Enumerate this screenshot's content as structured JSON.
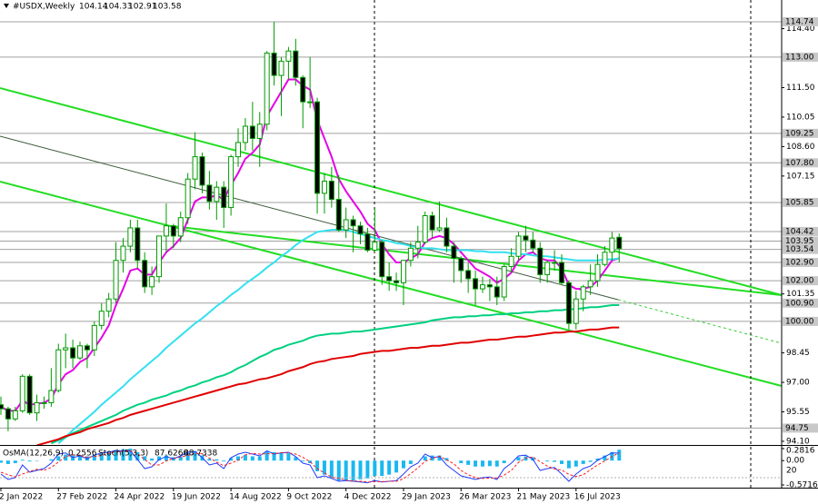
{
  "chart_data": {
    "type": "candlestick",
    "title": "#USDX,Weekly",
    "categories": [
      "2 Jan 2022",
      null,
      null,
      null,
      null,
      null,
      null,
      null,
      "27 Feb 2022",
      null,
      null,
      null,
      null,
      null,
      null,
      null,
      "24 Apr 2022",
      null,
      null,
      null,
      null,
      null,
      null,
      null,
      "19 Jun 2022",
      null,
      null,
      null,
      null,
      null,
      null,
      null,
      "14 Aug 2022",
      null,
      null,
      null,
      null,
      null,
      null,
      null,
      "9 Oct 2022",
      null,
      null,
      null,
      null,
      null,
      null,
      null,
      "4 Dec 2022",
      null,
      null,
      null,
      null,
      null,
      null,
      null,
      "29 Jan 2023",
      null,
      null,
      null,
      null,
      null,
      null,
      null,
      "26 Mar 2023",
      null,
      null,
      null,
      null,
      null,
      null,
      null,
      "21 May 2023",
      null,
      null,
      null,
      null,
      null,
      null,
      null,
      "16 Jul 2023",
      null,
      null,
      null,
      null,
      null,
      null
    ],
    "open": [
      95.9,
      95.7,
      95.2,
      95.6,
      97.3,
      95.5,
      96.0,
      96.0,
      96.6,
      98.6,
      98.7,
      98.2,
      98.8,
      98.6,
      99.8,
      100.5,
      101.1,
      103.0,
      103.7,
      104.6,
      103.0,
      101.7,
      102.2,
      104.2,
      104.7,
      104.2,
      105.1,
      107.0,
      108.1,
      106.7,
      105.9,
      106.6,
      105.6,
      108.1,
      108.8,
      109.6,
      109.0,
      109.7,
      113.2,
      112.1,
      112.8,
      113.3,
      112.0,
      110.8,
      110.8,
      106.3,
      106.9,
      106.0,
      104.5,
      105.0,
      104.7,
      104.3,
      103.5,
      103.9,
      102.2,
      102.0,
      101.9,
      103.0,
      103.6,
      103.9,
      105.2,
      104.5,
      104.6,
      103.7,
      103.1,
      102.5,
      102.1,
      101.6,
      101.8,
      101.7,
      101.2,
      102.7,
      103.2,
      104.2,
      104.0,
      103.6,
      102.3,
      102.9,
      102.9,
      101.9,
      99.9,
      101.1,
      101.7,
      102.0,
      102.8,
      103.4,
      104.14
    ],
    "high": [
      96.3,
      95.8,
      95.8,
      97.4,
      97.4,
      96.4,
      96.3,
      97.7,
      98.9,
      99.4,
      99.1,
      99.0,
      98.9,
      100.0,
      100.9,
      101.4,
      103.9,
      104.1,
      105.0,
      105.0,
      103.4,
      102.7,
      104.2,
      105.8,
      104.8,
      105.4,
      107.3,
      109.3,
      108.3,
      107.4,
      106.9,
      106.9,
      108.2,
      109.5,
      110.0,
      110.8,
      110.3,
      113.3,
      114.74,
      113.0,
      113.5,
      113.9,
      112.1,
      113.0,
      111.0,
      107.3,
      107.6,
      107.2,
      105.6,
      105.2,
      104.9,
      104.6,
      105.6,
      104.0,
      102.9,
      102.4,
      102.9,
      103.9,
      104.7,
      105.4,
      105.4,
      105.9,
      105.1,
      103.9,
      103.2,
      102.9,
      102.5,
      102.2,
      102.1,
      102.2,
      102.8,
      103.6,
      104.4,
      104.7,
      104.4,
      103.9,
      103.0,
      103.5,
      103.3,
      102.0,
      101.5,
      101.8,
      102.8,
      103.3,
      103.7,
      104.4,
      104.33
    ],
    "low": [
      95.4,
      94.6,
      95.1,
      95.5,
      95.4,
      95.1,
      95.7,
      95.8,
      96.5,
      97.7,
      97.7,
      98.1,
      97.7,
      98.3,
      99.6,
      100.2,
      100.9,
      102.4,
      103.4,
      102.6,
      101.4,
      101.3,
      101.9,
      103.4,
      103.6,
      103.9,
      104.8,
      106.5,
      106.3,
      105.5,
      105.0,
      104.6,
      105.2,
      107.6,
      108.4,
      108.4,
      107.6,
      109.4,
      111.6,
      110.1,
      111.9,
      111.6,
      109.5,
      110.5,
      105.3,
      105.3,
      105.6,
      104.4,
      104.1,
      103.4,
      103.8,
      103.4,
      103.4,
      101.8,
      101.5,
      101.5,
      100.8,
      102.7,
      103.1,
      103.8,
      104.1,
      104.4,
      103.4,
      101.9,
      101.9,
      101.4,
      100.8,
      101.4,
      101.0,
      100.8,
      101.0,
      102.4,
      103.0,
      103.4,
      103.4,
      101.9,
      101.9,
      102.5,
      101.8,
      99.6,
      99.6,
      100.5,
      101.3,
      101.7,
      102.7,
      103.0,
      102.91
    ],
    "close": [
      95.7,
      95.2,
      95.6,
      97.3,
      95.5,
      96.0,
      96.0,
      96.6,
      98.6,
      98.7,
      98.2,
      98.8,
      98.6,
      99.8,
      100.5,
      101.1,
      103.0,
      103.7,
      104.6,
      103.0,
      101.7,
      102.2,
      104.2,
      104.7,
      104.2,
      105.1,
      107.0,
      108.1,
      106.7,
      105.9,
      106.6,
      105.6,
      108.1,
      108.8,
      109.6,
      109.0,
      109.7,
      113.2,
      112.1,
      112.8,
      113.3,
      112.0,
      110.8,
      110.8,
      106.3,
      106.9,
      106.0,
      104.5,
      105.0,
      104.7,
      104.3,
      103.5,
      103.9,
      102.2,
      102.0,
      101.9,
      103.0,
      103.6,
      103.9,
      105.2,
      104.5,
      104.6,
      103.7,
      103.1,
      102.5,
      102.1,
      101.6,
      101.8,
      101.7,
      101.2,
      102.7,
      103.2,
      104.2,
      104.0,
      103.6,
      102.3,
      102.9,
      102.9,
      101.9,
      99.9,
      101.1,
      101.7,
      102.0,
      102.8,
      103.4,
      104.1,
      103.58
    ],
    "up_color": "#ffffff",
    "down_color": "#000000",
    "wick_color": "#009a00",
    "series": [
      {
        "color": "#e600e6",
        "values": [
          95.8,
          95.6,
          95.6,
          96.1,
          95.9,
          95.95,
          96.0,
          96.2,
          96.9,
          97.4,
          97.6,
          98.0,
          98.2,
          98.7,
          99.2,
          99.8,
          100.8,
          101.6,
          102.5,
          102.6,
          102.3,
          102.3,
          102.9,
          103.4,
          103.7,
          104.1,
          105.0,
          105.9,
          106.1,
          106.1,
          106.2,
          106.0,
          106.7,
          107.3,
          108.0,
          108.3,
          108.7,
          110.1,
          110.7,
          111.3,
          111.9,
          111.9,
          111.6,
          111.4,
          109.9,
          109.0,
          108.1,
          107.0,
          106.4,
          105.9,
          105.4,
          104.8,
          104.5,
          103.8,
          103.3,
          102.9,
          102.9,
          103.1,
          103.3,
          103.9,
          104.1,
          104.2,
          104.1,
          103.8,
          103.4,
          103.0,
          102.6,
          102.4,
          102.2,
          101.9,
          102.1,
          102.4,
          103.0,
          103.3,
          103.4,
          103.1,
          103.0,
          103.0,
          102.6,
          101.8,
          101.6,
          101.6,
          101.7,
          102.0,
          102.5,
          103.0,
          103.1
        ]
      },
      {
        "color": "#33e0f0",
        "values": [
          null,
          null,
          null,
          null,
          null,
          null,
          null,
          null,
          94.0,
          94.3,
          94.65,
          94.95,
          95.25,
          95.55,
          95.9,
          96.2,
          96.5,
          96.8,
          97.15,
          97.45,
          97.75,
          98.05,
          98.35,
          98.7,
          99.0,
          99.3,
          99.6,
          99.9,
          100.15,
          100.45,
          100.75,
          101.0,
          101.3,
          101.55,
          101.85,
          102.1,
          102.35,
          102.65,
          102.9,
          103.2,
          103.45,
          103.75,
          104.0,
          104.2,
          104.4,
          104.45,
          104.5,
          104.5,
          104.5,
          104.4,
          104.3,
          104.2,
          104.1,
          104.0,
          103.95,
          103.85,
          103.8,
          103.7,
          103.65,
          103.6,
          103.6,
          103.55,
          103.5,
          103.5,
          103.5,
          103.5,
          103.45,
          103.45,
          103.4,
          103.4,
          103.4,
          103.35,
          103.3,
          103.3,
          103.25,
          103.2,
          103.2,
          103.15,
          103.1,
          103.05,
          103.0,
          103.0,
          103.0,
          103.0,
          103.05,
          103.05,
          103.1
        ]
      },
      {
        "color": "#00d080",
        "values": [
          null,
          null,
          null,
          null,
          null,
          null,
          null,
          94.0,
          94.15,
          94.3,
          94.5,
          94.65,
          94.8,
          94.95,
          95.1,
          95.25,
          95.4,
          95.6,
          95.75,
          95.9,
          96.0,
          96.15,
          96.25,
          96.35,
          96.5,
          96.6,
          96.75,
          96.85,
          97.0,
          97.1,
          97.25,
          97.35,
          97.5,
          97.7,
          97.85,
          98.05,
          98.25,
          98.4,
          98.6,
          98.7,
          98.85,
          98.95,
          99.05,
          99.2,
          99.3,
          99.35,
          99.4,
          99.4,
          99.45,
          99.5,
          99.5,
          99.55,
          99.6,
          99.65,
          99.7,
          99.75,
          99.8,
          99.85,
          99.9,
          99.95,
          100.05,
          100.1,
          100.15,
          100.2,
          100.2,
          100.25,
          100.25,
          100.3,
          100.3,
          100.35,
          100.35,
          100.4,
          100.4,
          100.45,
          100.45,
          100.5,
          100.5,
          100.55,
          100.55,
          100.6,
          100.6,
          100.65,
          100.7,
          100.7,
          100.75,
          100.8,
          100.8
        ]
      },
      {
        "color": "#e00000",
        "values": [
          null,
          null,
          null,
          null,
          null,
          93.9,
          94.0,
          94.1,
          94.2,
          94.35,
          94.45,
          94.55,
          94.7,
          94.8,
          94.9,
          95.0,
          95.15,
          95.25,
          95.4,
          95.5,
          95.6,
          95.7,
          95.8,
          95.9,
          96.0,
          96.1,
          96.2,
          96.3,
          96.4,
          96.5,
          96.6,
          96.7,
          96.8,
          96.9,
          96.95,
          97.05,
          97.15,
          97.2,
          97.3,
          97.4,
          97.55,
          97.65,
          97.75,
          97.9,
          98.0,
          98.05,
          98.15,
          98.2,
          98.25,
          98.3,
          98.4,
          98.45,
          98.5,
          98.55,
          98.55,
          98.6,
          98.65,
          98.7,
          98.7,
          98.75,
          98.8,
          98.8,
          98.85,
          98.9,
          98.95,
          98.95,
          99.0,
          99.05,
          99.1,
          99.1,
          99.15,
          99.2,
          99.25,
          99.25,
          99.3,
          99.35,
          99.4,
          99.45,
          99.45,
          99.5,
          99.5,
          99.55,
          99.6,
          99.6,
          99.65,
          99.7,
          99.7
        ]
      }
    ],
    "ylim": [
      93.92,
      115.81
    ],
    "yticks": [
      {
        "value": 114.4,
        "label": "114.40"
      },
      {
        "value": 111.5,
        "label": "111.50"
      },
      110.05,
      {
        "value": 108.6,
        "label": "108.60"
      },
      107.15,
      101.35,
      98.45,
      {
        "value": 97,
        "label": "97.00"
      },
      95.55,
      {
        "value": 94.1,
        "label": "94.10"
      }
    ],
    "levels": [
      114.74,
      {
        "value": 113,
        "label": "113.00"
      },
      109.25,
      {
        "value": 107.8,
        "label": "107.80"
      },
      105.85,
      104.42,
      103.95,
      103.54,
      {
        "value": 102.9,
        "label": "102.90"
      },
      {
        "value": 102,
        "label": "102.00"
      },
      {
        "value": 100.9,
        "label": "100.90"
      },
      {
        "value": 100,
        "label": "100.00"
      },
      94.75
    ],
    "level_color": "#a0a0a0",
    "osma": {
      "title": "OsMA(12,26,9)",
      "color": "#1ab8f0",
      "values": [
        -0.05,
        -0.08,
        -0.06,
        0.02,
        -0.02,
        -0.01,
        0.0,
        0.03,
        0.1,
        0.14,
        0.12,
        0.13,
        0.1,
        0.14,
        0.16,
        0.18,
        0.25,
        0.27,
        0.28,
        0.2,
        0.1,
        0.05,
        0.1,
        0.12,
        0.08,
        0.1,
        0.18,
        0.22,
        0.12,
        0.04,
        0.03,
        -0.02,
        0.06,
        0.1,
        0.13,
        0.1,
        0.1,
        0.22,
        0.2,
        0.18,
        0.17,
        0.08,
        -0.02,
        -0.06,
        -0.25,
        -0.33,
        -0.4,
        -0.47,
        -0.48,
        -0.47,
        -0.44,
        -0.42,
        -0.36,
        -0.36,
        -0.33,
        -0.28,
        -0.18,
        -0.08,
        0.0,
        0.1,
        0.12,
        0.12,
        0.06,
        0.0,
        -0.06,
        -0.1,
        -0.14,
        -0.14,
        -0.13,
        -0.14,
        -0.06,
        0.0,
        0.08,
        0.1,
        0.08,
        0.0,
        -0.02,
        -0.03,
        -0.08,
        -0.18,
        -0.14,
        -0.08,
        -0.03,
        0.05,
        0.12,
        0.2,
        0.2556
      ],
      "ylim": [
        -0.5716,
        0.2816
      ],
      "yticks": [
        0.2816,
        {
          "value": 0,
          "label": "0.00"
        },
        -0.5716
      ]
    },
    "stoch": {
      "title": "Stoch(5,3,3)",
      "ylim": [
        0,
        100
      ],
      "yticks": [
        20
      ],
      "main": {
        "color": "#1f3cff",
        "readout": "87.6260",
        "values": [
          30,
          15,
          20,
          55,
          35,
          40,
          45,
          60,
          85,
          88,
          75,
          80,
          72,
          82,
          88,
          90,
          95,
          93,
          94,
          70,
          45,
          50,
          70,
          78,
          72,
          80,
          90,
          92,
          75,
          55,
          60,
          45,
          75,
          85,
          90,
          85,
          80,
          94,
          85,
          88,
          90,
          78,
          60,
          55,
          20,
          25,
          18,
          10,
          12,
          10,
          8,
          6,
          12,
          8,
          10,
          12,
          30,
          50,
          60,
          85,
          75,
          78,
          55,
          40,
          25,
          20,
          15,
          20,
          22,
          15,
          45,
          60,
          80,
          82,
          70,
          40,
          45,
          48,
          30,
          10,
          30,
          45,
          52,
          68,
          78,
          88,
          87.626
        ]
      },
      "signal": {
        "color": "#ff2020",
        "values": [
          35,
          28,
          22,
          30,
          37,
          43,
          40,
          48,
          63,
          78,
          83,
          81,
          76,
          78,
          81,
          87,
          91,
          93,
          94,
          86,
          70,
          55,
          55,
          66,
          73,
          77,
          81,
          87,
          86,
          74,
          63,
          53,
          60,
          68,
          83,
          87,
          85,
          86,
          86,
          89,
          88,
          85,
          76,
          64,
          45,
          33,
          21,
          18,
          13,
          11,
          10,
          8,
          9,
          9,
          10,
          10,
          17,
          31,
          47,
          65,
          73,
          79,
          69,
          58,
          40,
          28,
          20,
          18,
          19,
          19,
          27,
          40,
          62,
          74,
          77,
          64,
          52,
          44,
          41,
          29,
          23,
          28,
          42,
          55,
          66,
          78,
          88.7338
        ]
      }
    }
  }
}
